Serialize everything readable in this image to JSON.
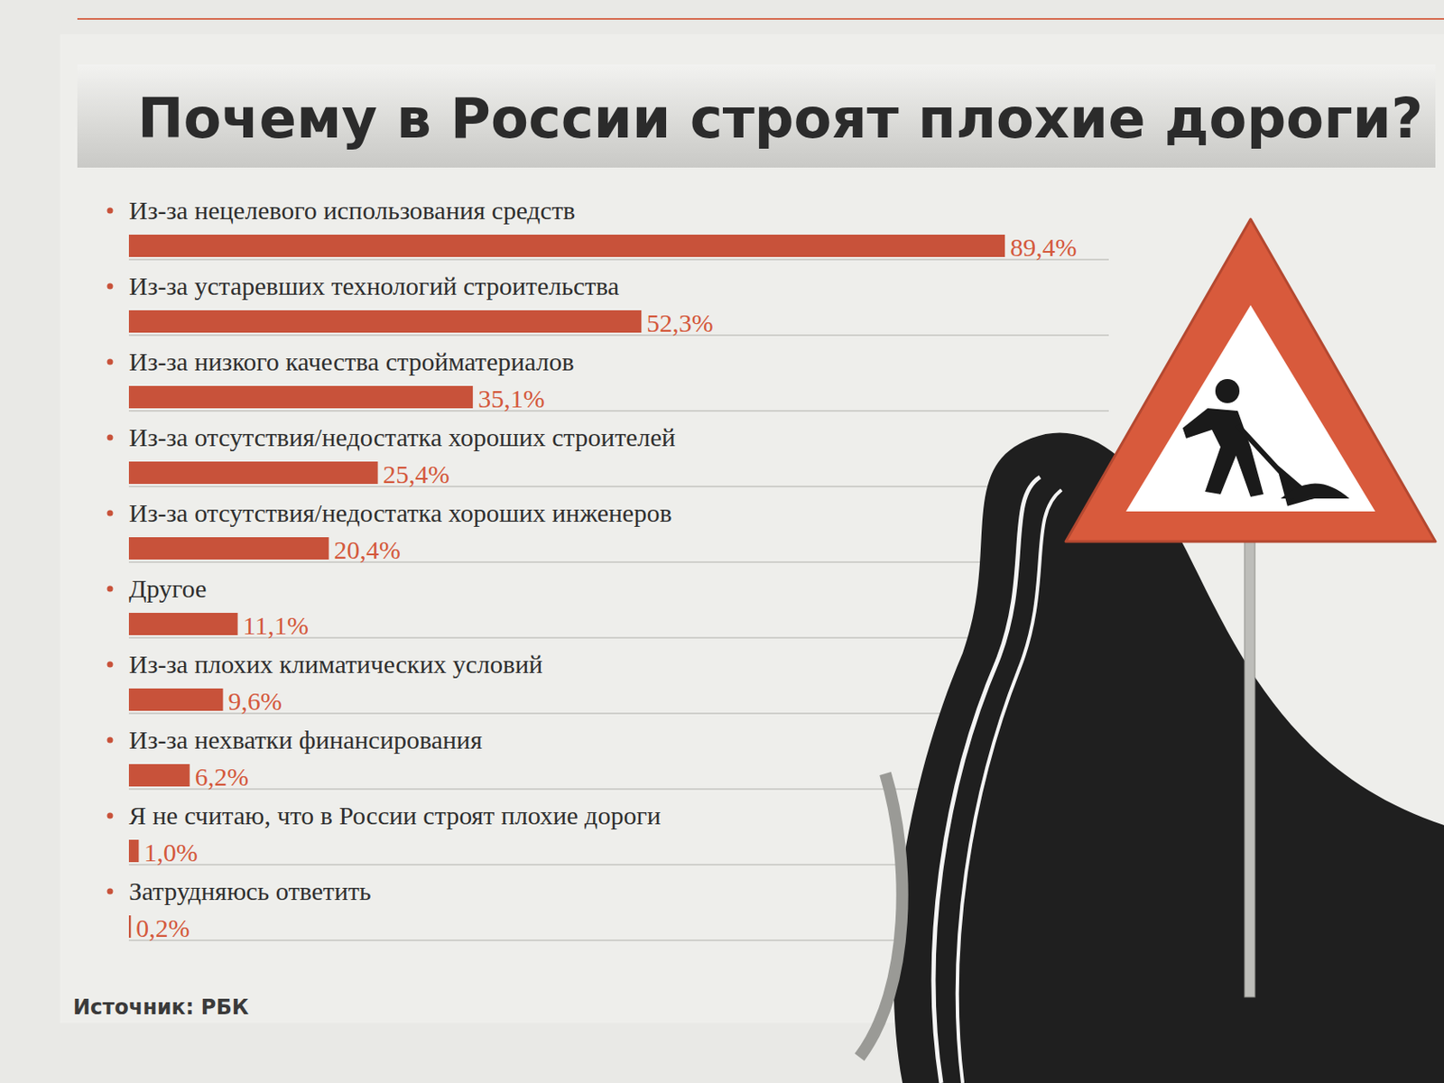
{
  "chart_data": {
    "type": "bar",
    "orientation": "horizontal",
    "title": "Почему в России строят плохие дороги?",
    "categories": [
      "Из-за нецелевого использования средств",
      "Из-за устаревших технологий строительства",
      "Из-за низкого качества стройматериалов",
      "Из-за отсутствия/недостатка хороших строителей",
      "Из-за отсутствия/недостатка хороших инженеров",
      "Другое",
      "Из-за плохих климатических условий",
      "Из-за нехватки финансирования",
      "Я не считаю, что в России строят плохие дороги",
      "Затрудняюсь ответить"
    ],
    "values": [
      89.4,
      52.3,
      35.1,
      25.4,
      20.4,
      11.1,
      9.6,
      6.2,
      1.0,
      0.2
    ],
    "value_labels": [
      "89,4%",
      "52,3%",
      "35,1%",
      "25,4%",
      "20,4%",
      "11,1%",
      "9,6%",
      "6,2%",
      "1,0%",
      "0,2%"
    ],
    "xlim": [
      0,
      100
    ],
    "color": "#c8523a",
    "data_labels": true,
    "tick_labels": false,
    "grid": false,
    "source": "Источник: РБК"
  }
}
